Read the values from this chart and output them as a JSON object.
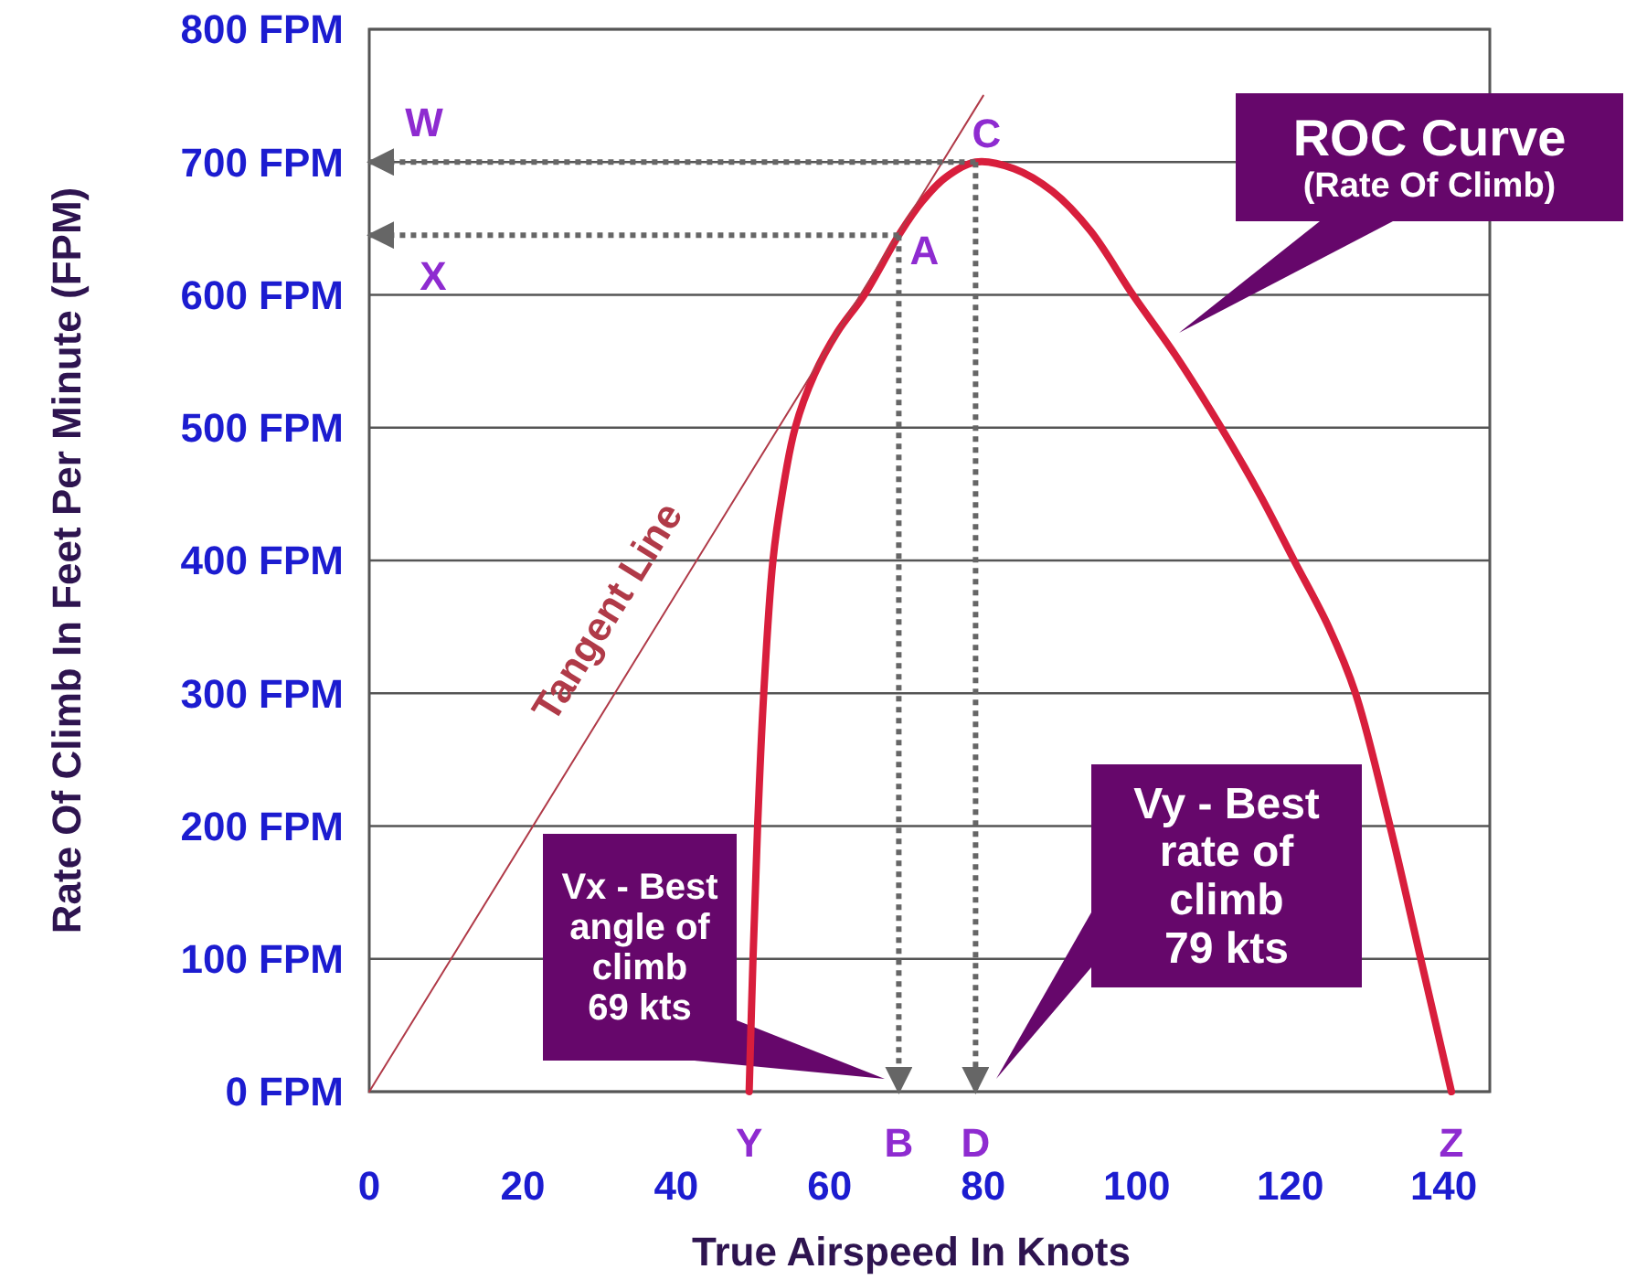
{
  "chart_data": {
    "type": "line",
    "xlabel": "True Airspeed In Knots",
    "ylabel": "Rate Of Climb In Feet Per Minute (FPM)",
    "xlim": [
      0,
      146
    ],
    "ylim": [
      0,
      800
    ],
    "xticks": [
      0,
      20,
      40,
      60,
      80,
      100,
      120,
      140
    ],
    "yticks": [
      {
        "value": 0,
        "label": "0 FPM"
      },
      {
        "value": 100,
        "label": "100 FPM"
      },
      {
        "value": 200,
        "label": "200 FPM"
      },
      {
        "value": 300,
        "label": "300 FPM"
      },
      {
        "value": 400,
        "label": "400 FPM"
      },
      {
        "value": 500,
        "label": "500 FPM"
      },
      {
        "value": 600,
        "label": "600 FPM"
      },
      {
        "value": 700,
        "label": "700 FPM"
      },
      {
        "value": 800,
        "label": "800 FPM"
      }
    ],
    "grid": "y",
    "series": [
      {
        "color": "#d81e3c",
        "x": [
          49.5,
          50,
          50.6,
          51.4,
          52.6,
          53.8,
          55.5,
          58,
          61,
          64.5,
          69,
          72,
          75,
          79,
          84,
          89,
          94,
          99.5,
          105,
          111,
          116,
          120.5,
          125,
          128.5,
          133,
          137,
          141
        ],
        "values": [
          0,
          100,
          200,
          300,
          400,
          450,
          500,
          540,
          572,
          600,
          645,
          670,
          688,
          700,
          695,
          678,
          648,
          600,
          555,
          500,
          450,
          400,
          350,
          300,
          200,
          100,
          0
        ]
      },
      {
        "name": "Tangent Line",
        "color": "#b03a48",
        "x": [
          0,
          80
        ],
        "values": [
          0,
          750
        ]
      },
      {
        "color": "#666666",
        "line_style": "dotted",
        "x": [
          79,
          0
        ],
        "values": [
          700,
          700
        ]
      },
      {
        "color": "#666666",
        "line_style": "dotted",
        "x": [
          69,
          0
        ],
        "values": [
          645,
          645
        ]
      },
      {
        "color": "#666666",
        "line_style": "dotted",
        "x": [
          69,
          69
        ],
        "values": [
          645,
          0
        ]
      },
      {
        "color": "#666666",
        "line_style": "dotted",
        "x": [
          79,
          79
        ],
        "values": [
          700,
          0
        ]
      }
    ],
    "annotations": [
      {
        "text": "W",
        "x": 0,
        "y": 700
      },
      {
        "text": "X",
        "x": 0,
        "y": 645
      },
      {
        "text": "A",
        "x": 69,
        "y": 645
      },
      {
        "text": "C",
        "x": 79,
        "y": 700
      },
      {
        "text": "Y",
        "x": 49.5,
        "y": 0
      },
      {
        "text": "B",
        "x": 69,
        "y": 0
      },
      {
        "text": "D",
        "x": 79,
        "y": 0
      },
      {
        "text": "Z",
        "x": 141,
        "y": 0
      },
      "ROC Curve\n(Rate Of Climb)",
      "Vx - Best\nangle of\nclimb\n69 kts",
      "Vy - Best\nrate of\nclimb\n79 kts"
    ]
  }
}
